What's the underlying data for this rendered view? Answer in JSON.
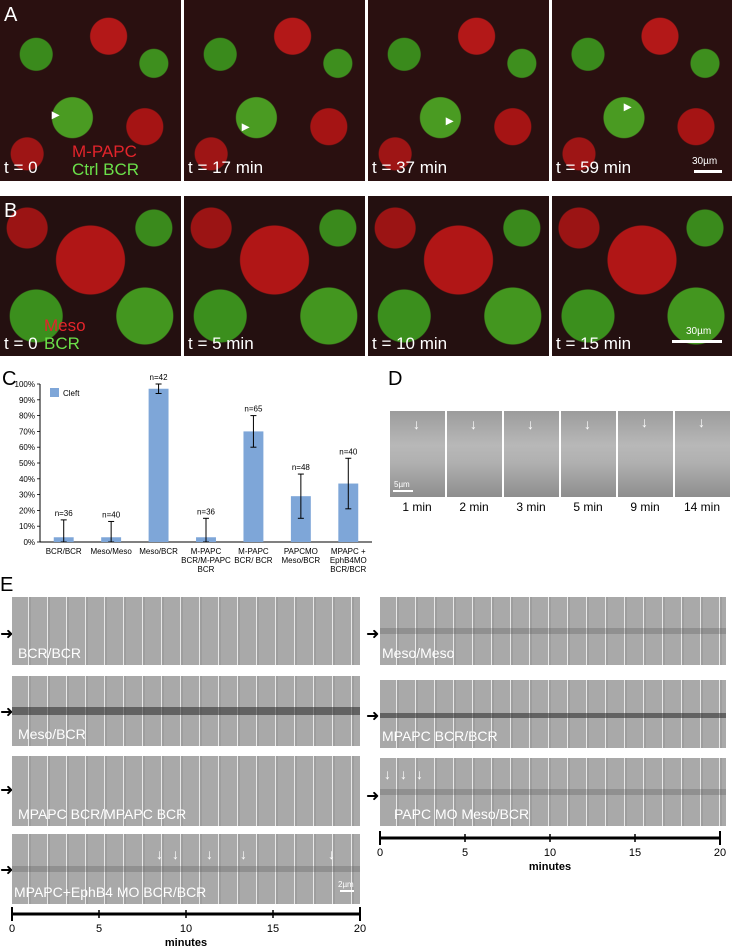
{
  "panels": {
    "A": {
      "letter": "A",
      "times": [
        "t = 0",
        "t = 17 min",
        "t = 37 min",
        "t = 59 min"
      ],
      "legend": [
        "M-PAPC",
        "Ctrl BCR"
      ],
      "scale": "30µm"
    },
    "B": {
      "letter": "B",
      "times": [
        "t = 0",
        "t = 5 min",
        "t = 10 min",
        "t = 15 min"
      ],
      "legend": [
        "Meso",
        "BCR"
      ],
      "scale": "30µm"
    },
    "C": {
      "letter": "C"
    },
    "D": {
      "letter": "D",
      "times": [
        "1 min",
        "2 min",
        "3 min",
        "5 min",
        "9 min",
        "14 min"
      ],
      "scale": "5µm"
    },
    "E": {
      "letter": "E",
      "strips_left": [
        "BCR/BCR",
        "Meso/BCR",
        "MPAPC BCR/MPAPC BCR",
        "MPAPC+EphB4 MO BCR/BCR"
      ],
      "strips_right": [
        "Meso/Meso",
        "MPAPC BCR/BCR",
        "PAPC MO Meso/BCR"
      ],
      "scale": "2µm",
      "axis_ticks": [
        "0",
        "5",
        "10",
        "15",
        "20"
      ],
      "axis_title": "minutes"
    }
  },
  "chart_data": {
    "type": "bar",
    "categories": [
      "BCR/BCR",
      "Meso/Meso",
      "Meso/BCR",
      "M-PAPC BCR/M-PAPC BCR",
      "M-PAPC BCR/ BCR",
      "PAPCMO Meso/BCR",
      "MPAPC + EphB4MO BCR/BCR"
    ],
    "category_lines": [
      [
        "BCR/BCR"
      ],
      [
        "Meso/Meso"
      ],
      [
        "Meso/BCR"
      ],
      [
        "M-PAPC",
        "BCR/M-PAPC",
        "BCR"
      ],
      [
        "M-PAPC",
        "BCR/ BCR"
      ],
      [
        "PAPCMO",
        "Meso/BCR"
      ],
      [
        "MPAPC +",
        "EphB4MO",
        "BCR/BCR"
      ]
    ],
    "series": [
      {
        "name": "Cleft",
        "values": [
          3,
          3,
          97,
          3,
          70,
          29,
          37
        ],
        "errors": [
          11,
          10,
          3,
          12,
          10,
          14,
          16
        ]
      }
    ],
    "n_labels": [
      "n=36",
      "n=40",
      "n=42",
      "n=36",
      "n=65",
      "n=48",
      "n=40"
    ],
    "ylim": [
      0,
      100
    ],
    "yticks": [
      "0%",
      "10%",
      "20%",
      "30%",
      "40%",
      "50%",
      "60%",
      "70%",
      "80%",
      "90%",
      "100%"
    ],
    "bar_color": "#7ea6d8"
  }
}
